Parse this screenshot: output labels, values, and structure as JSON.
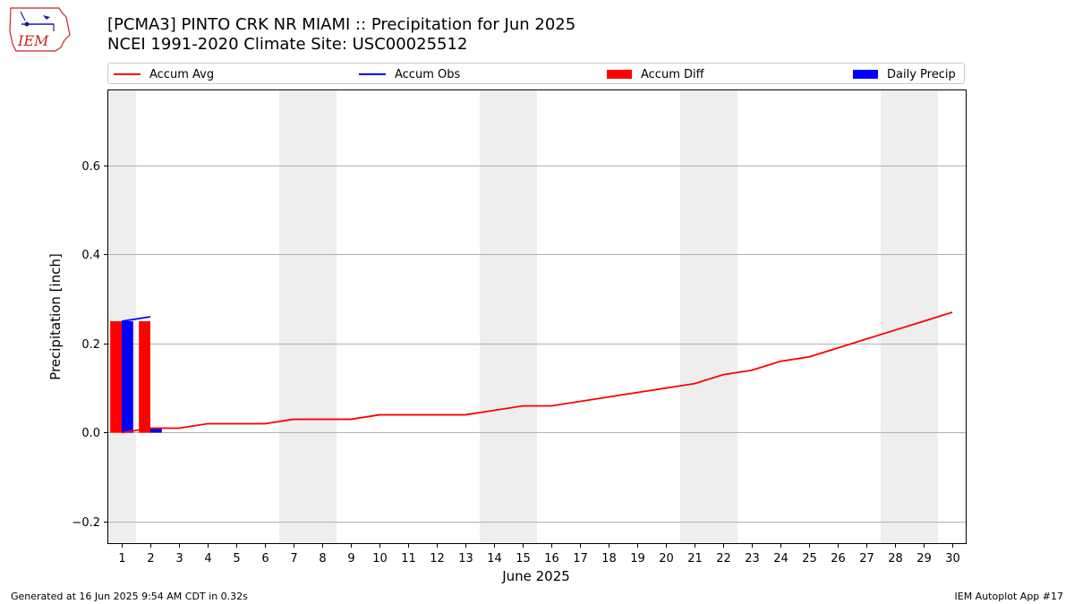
{
  "header": {
    "title_line1": "[PCMA3] PINTO CRK NR MIAMI :: Precipitation for Jun 2025",
    "title_line2": "NCEI 1991-2020 Climate Site: USC00025512"
  },
  "logo": {
    "text": "IEM"
  },
  "footer": {
    "left": "Generated at 16 Jun 2025 9:54 AM CDT in 0.32s",
    "right": "IEM Autoplot App #17"
  },
  "chart_data": {
    "type": "line",
    "xlabel": "June 2025",
    "ylabel": "Precipitation [inch]",
    "xlim": [
      0.5,
      30.5
    ],
    "ylim": [
      -0.25,
      0.77
    ],
    "yticks": [
      -0.2,
      0.0,
      0.2,
      0.4,
      0.6
    ],
    "ytick_labels": [
      "−0.2",
      "0.0",
      "0.2",
      "0.4",
      "0.6"
    ],
    "x": [
      1,
      2,
      3,
      4,
      5,
      6,
      7,
      8,
      9,
      10,
      11,
      12,
      13,
      14,
      15,
      16,
      17,
      18,
      19,
      20,
      21,
      22,
      23,
      24,
      25,
      26,
      27,
      28,
      29,
      30
    ],
    "weekend_days": [
      1,
      7,
      8,
      14,
      15,
      21,
      22,
      28,
      29
    ],
    "grid": true,
    "legend_placement": "top",
    "series": [
      {
        "name": "Accum Avg",
        "kind": "line",
        "color": "#ff0000",
        "values": [
          0.0,
          0.01,
          0.01,
          0.02,
          0.02,
          0.02,
          0.03,
          0.03,
          0.03,
          0.04,
          0.04,
          0.04,
          0.04,
          0.05,
          0.06,
          0.06,
          0.07,
          0.08,
          0.09,
          0.1,
          0.11,
          0.13,
          0.14,
          0.16,
          0.17,
          0.19,
          0.21,
          0.23,
          0.25,
          0.27
        ]
      },
      {
        "name": "Accum Obs",
        "kind": "line",
        "color": "#0000ff",
        "x": [
          1,
          2
        ],
        "values": [
          0.25,
          0.26
        ]
      },
      {
        "name": "Accum Diff",
        "kind": "bar",
        "color": "#ff0000",
        "x": [
          1,
          2
        ],
        "values": [
          0.25,
          0.25
        ]
      },
      {
        "name": "Daily Precip",
        "kind": "bar",
        "color": "#0000ff",
        "x": [
          1,
          2
        ],
        "values": [
          0.25,
          0.01
        ]
      }
    ]
  }
}
